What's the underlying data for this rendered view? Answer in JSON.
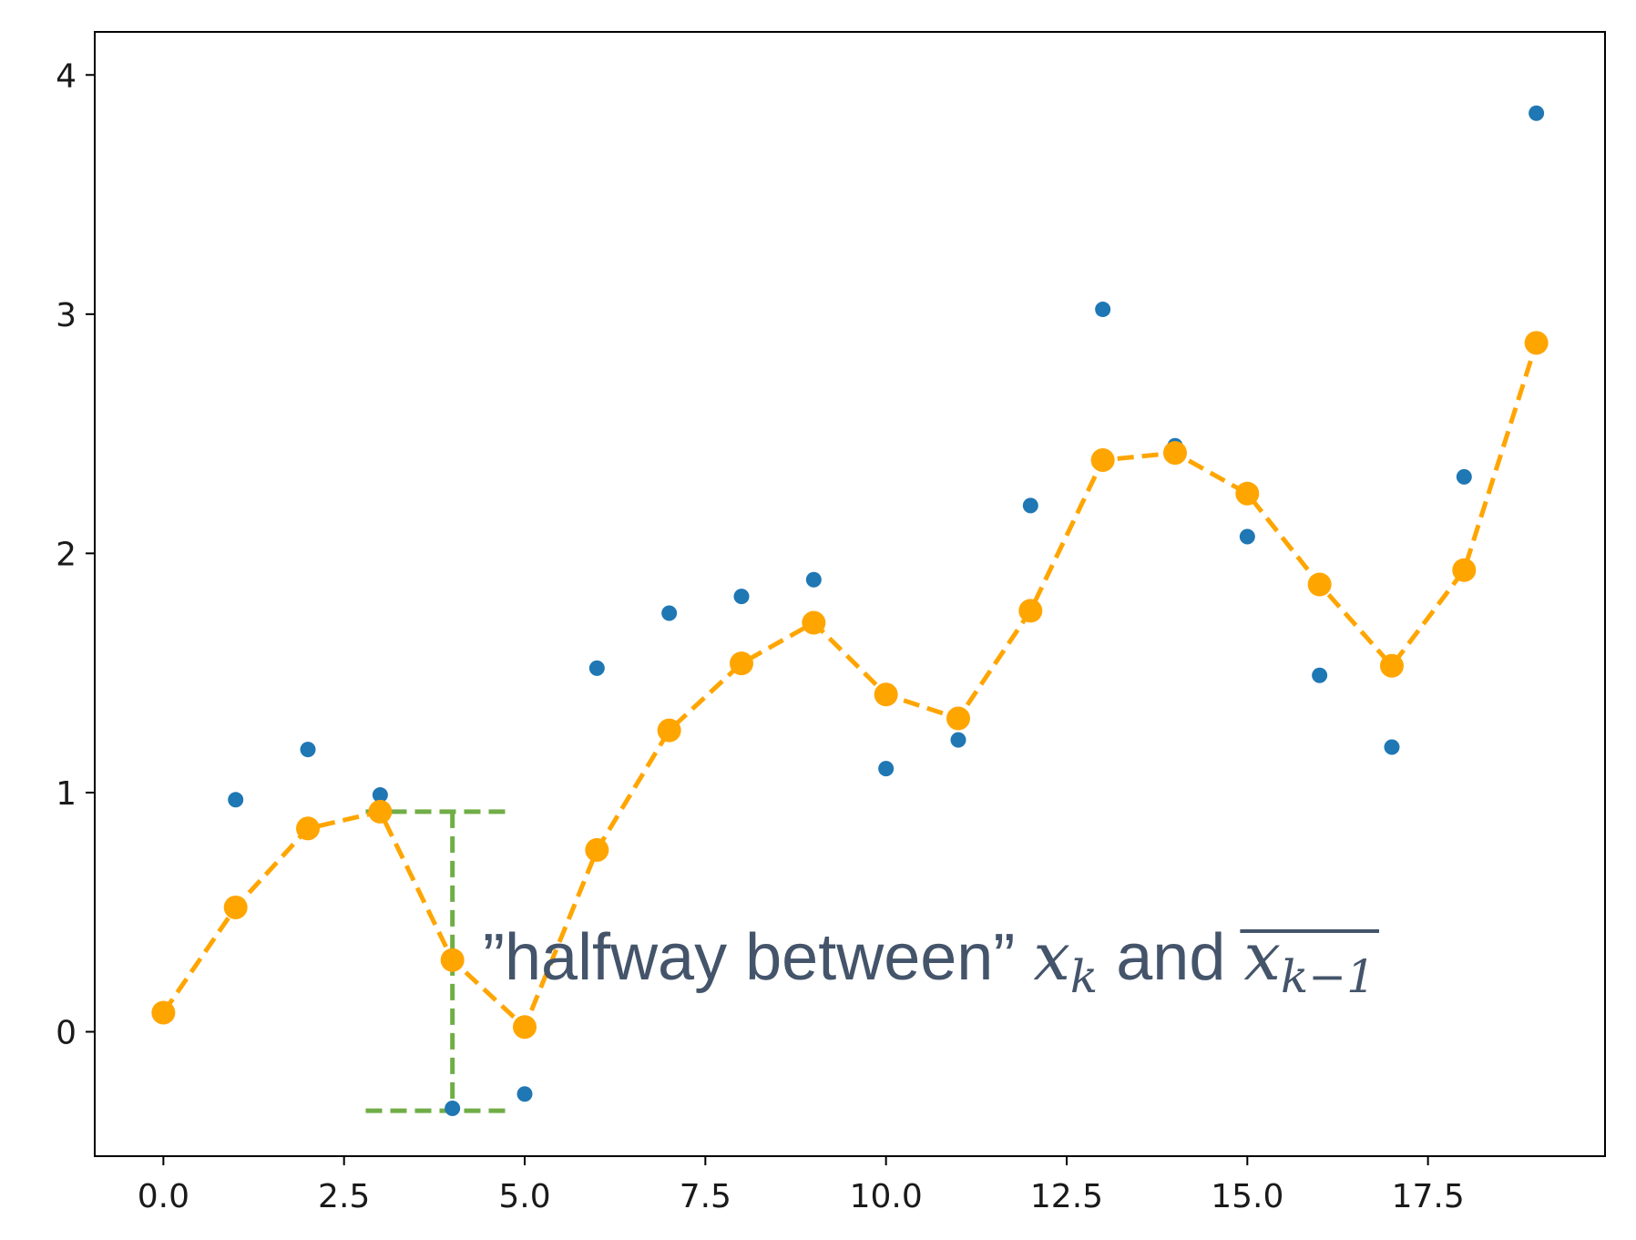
{
  "chart_data": {
    "type": "scatter",
    "title": "",
    "xlabel": "",
    "ylabel": "",
    "xlim": [
      -0.95,
      19.95
    ],
    "ylim": [
      -0.52,
      4.18
    ],
    "x_ticks": [
      0,
      2.5,
      5,
      7.5,
      10,
      12.5,
      15,
      17.5
    ],
    "x_tick_labels": [
      "0.0",
      "2.5",
      "5.0",
      "7.5",
      "10.0",
      "12.5",
      "15.0",
      "17.5"
    ],
    "y_ticks": [
      0,
      1,
      2,
      3,
      4
    ],
    "y_tick_labels": [
      "0",
      "1",
      "2",
      "3",
      "4"
    ],
    "grid": false,
    "series": [
      {
        "style": "scatter",
        "color": "#1f77b4",
        "x": [
          1,
          2,
          3,
          4,
          5,
          6,
          7,
          8,
          9,
          10,
          11,
          12,
          13,
          14,
          15,
          16,
          17,
          18,
          19
        ],
        "y": [
          0.97,
          1.18,
          0.99,
          -0.32,
          -0.26,
          1.52,
          1.75,
          1.82,
          1.89,
          1.1,
          1.22,
          2.2,
          3.02,
          2.45,
          2.07,
          1.49,
          1.19,
          2.32,
          3.84
        ]
      },
      {
        "style": "dashed-line-markers",
        "color": "#ffa500",
        "x": [
          0,
          1,
          2,
          3,
          4,
          5,
          6,
          7,
          8,
          9,
          10,
          11,
          12,
          13,
          14,
          15,
          16,
          17,
          18,
          19
        ],
        "y": [
          0.08,
          0.52,
          0.85,
          0.92,
          0.3,
          0.02,
          0.76,
          1.26,
          1.54,
          1.71,
          1.41,
          1.31,
          1.76,
          2.39,
          2.42,
          2.25,
          1.87,
          1.53,
          1.93,
          2.88
        ]
      }
    ],
    "annotation": {
      "bracket_color": "#70ad47",
      "bracket_x": 4,
      "bracket_x_span": [
        2.8,
        4.8
      ],
      "bracket_y": [
        -0.33,
        0.92
      ],
      "text_prefix": "”halfway between” ",
      "math_1": "x",
      "math_1_sub": "k",
      "text_mid": " and ",
      "math_2": "x",
      "math_2_sub": "k−1"
    }
  }
}
